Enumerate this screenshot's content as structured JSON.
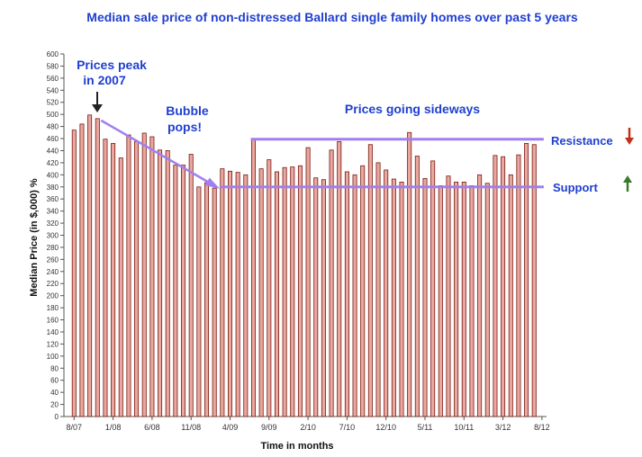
{
  "chart_data": {
    "type": "bar",
    "title": "Median sale price of non-distressed Ballard single family homes over past 5 years",
    "xlabel": "Time in months",
    "ylabel": "Median Price (in $,000) %",
    "ylim": [
      0,
      600
    ],
    "yticks": [
      0,
      20,
      40,
      60,
      80,
      100,
      120,
      140,
      160,
      180,
      200,
      220,
      240,
      260,
      280,
      300,
      320,
      340,
      360,
      380,
      400,
      420,
      440,
      460,
      480,
      500,
      520,
      540,
      560,
      580,
      600
    ],
    "xtick_labels": [
      {
        "index": 0,
        "label": "8/07"
      },
      {
        "index": 5,
        "label": "1/08"
      },
      {
        "index": 10,
        "label": "6/08"
      },
      {
        "index": 15,
        "label": "11/08"
      },
      {
        "index": 20,
        "label": "4/09"
      },
      {
        "index": 25,
        "label": "9/09"
      },
      {
        "index": 30,
        "label": "2/10"
      },
      {
        "index": 35,
        "label": "7/10"
      },
      {
        "index": 40,
        "label": "12/10"
      },
      {
        "index": 45,
        "label": "5/11"
      },
      {
        "index": 50,
        "label": "10/11"
      },
      {
        "index": 55,
        "label": "3/12"
      },
      {
        "index": 60,
        "label": "8/12"
      }
    ],
    "values": [
      474,
      484,
      499,
      493,
      459,
      452,
      428,
      466,
      455,
      469,
      463,
      441,
      440,
      416,
      416,
      434,
      380,
      387,
      378,
      410,
      406,
      404,
      400,
      459,
      410,
      425,
      405,
      412,
      413,
      415,
      445,
      395,
      392,
      441,
      455,
      405,
      400,
      415,
      450,
      420,
      408,
      393,
      388,
      470,
      431,
      394,
      423,
      382,
      398,
      388,
      388,
      382,
      400,
      386,
      432,
      430,
      400,
      433,
      452,
      450
    ],
    "bar_color": "#e8a8a0",
    "bar_stroke": "#7a1a10",
    "lines": [
      {
        "name": "Resistance",
        "value": 459,
        "from_index": 23,
        "to_index": 60,
        "color": "#a07ff0"
      },
      {
        "name": "Support",
        "value": 380,
        "from_index": 19,
        "to_index": 60,
        "color": "#a07ff0"
      }
    ],
    "annotations": {
      "peak_line1": "Prices peak",
      "peak_line2": "in 2007",
      "bubble_line1": "Bubble",
      "bubble_line2": "pops!",
      "sideways": "Prices going sideways",
      "resistance": "Resistance",
      "support": "Support"
    },
    "colors": {
      "title": "#1f3fd0",
      "trend_arrow": "#a07ff0",
      "down_arrow": "#c0301a",
      "up_arrow": "#3a7a2a"
    }
  }
}
